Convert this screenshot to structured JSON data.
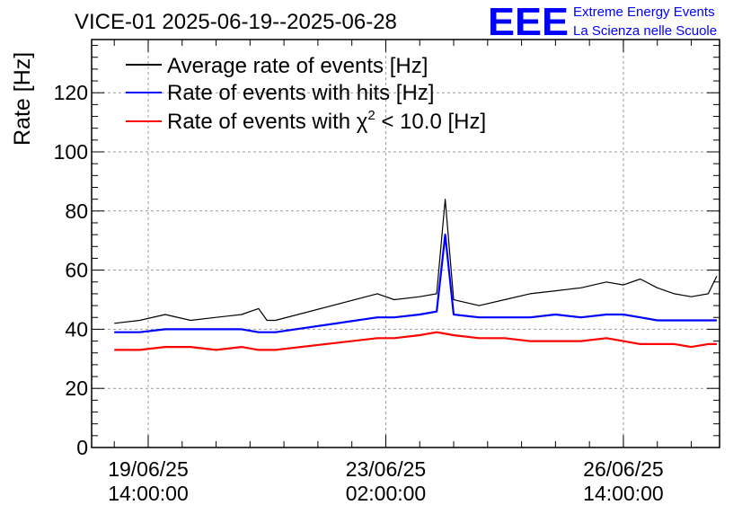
{
  "title": "VICE-01 2025-06-19--2025-06-28",
  "logo": {
    "letters": "EEE",
    "line1": "Extreme Energy Events",
    "line2": "La Scienza nelle Scuole",
    "color": "#0000ff"
  },
  "legend": {
    "items": [
      {
        "text": "Average rate of events [Hz]",
        "color": "#000000"
      },
      {
        "text": "Rate of events with hits [Hz]",
        "color": "#0000ff"
      },
      {
        "text_before": "Rate of events with ",
        "symbol": "χ",
        "superscript": "2",
        "text_after": " < 10.0 [Hz]",
        "color": "#ff0000"
      }
    ]
  },
  "chart_data": {
    "type": "line",
    "title": "VICE-01 2025-06-19--2025-06-28",
    "xlabel": "",
    "ylabel": "Rate [Hz]",
    "ylim": [
      0,
      138
    ],
    "xlim": [
      "2025-06-18 18:00",
      "2025-06-28 00:00"
    ],
    "yticks": [
      0,
      20,
      40,
      60,
      80,
      100,
      120
    ],
    "xticks": [
      {
        "date": "2025-06-19 14:00",
        "label_date": "19/06/25",
        "label_time": "14:00:00"
      },
      {
        "date": "2025-06-23 02:00",
        "label_date": "23/06/25",
        "label_time": "02:00:00"
      },
      {
        "date": "2025-06-26 14:00",
        "label_date": "26/06/25",
        "label_time": "14:00:00"
      }
    ],
    "grid": true,
    "legend_position": "top-left",
    "series": [
      {
        "name": "Average rate of events [Hz]",
        "color": "#000000",
        "points": [
          [
            "2025-06-19 02:00",
            42
          ],
          [
            "2025-06-19 11:00",
            43
          ],
          [
            "2025-06-19 20:00",
            45
          ],
          [
            "2025-06-20 05:00",
            43
          ],
          [
            "2025-06-20 14:00",
            44
          ],
          [
            "2025-06-20 23:00",
            45
          ],
          [
            "2025-06-21 05:00",
            47
          ],
          [
            "2025-06-21 08:00",
            43
          ],
          [
            "2025-06-21 11:00",
            43
          ],
          [
            "2025-06-22 23:00",
            52
          ],
          [
            "2025-06-23 05:00",
            50
          ],
          [
            "2025-06-23 14:00",
            51
          ],
          [
            "2025-06-23 20:00",
            52
          ],
          [
            "2025-06-23 23:00",
            84
          ],
          [
            "2025-06-24 02:00",
            50
          ],
          [
            "2025-06-24 11:00",
            48
          ],
          [
            "2025-06-24 20:00",
            50
          ],
          [
            "2025-06-25 05:00",
            52
          ],
          [
            "2025-06-25 14:00",
            53
          ],
          [
            "2025-06-25 23:00",
            54
          ],
          [
            "2025-06-26 08:00",
            56
          ],
          [
            "2025-06-26 14:00",
            55
          ],
          [
            "2025-06-26 20:00",
            57
          ],
          [
            "2025-06-27 02:00",
            54
          ],
          [
            "2025-06-27 08:00",
            52
          ],
          [
            "2025-06-27 14:00",
            51
          ],
          [
            "2025-06-27 20:00",
            52
          ],
          [
            "2025-06-27 23:00",
            58
          ]
        ]
      },
      {
        "name": "Rate of events with hits [Hz]",
        "color": "#0000ff",
        "points": [
          [
            "2025-06-19 02:00",
            39
          ],
          [
            "2025-06-19 11:00",
            39
          ],
          [
            "2025-06-19 20:00",
            40
          ],
          [
            "2025-06-20 05:00",
            40
          ],
          [
            "2025-06-20 14:00",
            40
          ],
          [
            "2025-06-20 23:00",
            40
          ],
          [
            "2025-06-21 05:00",
            39
          ],
          [
            "2025-06-21 11:00",
            39
          ],
          [
            "2025-06-22 23:00",
            44
          ],
          [
            "2025-06-23 05:00",
            44
          ],
          [
            "2025-06-23 14:00",
            45
          ],
          [
            "2025-06-23 20:00",
            46
          ],
          [
            "2025-06-23 23:00",
            72
          ],
          [
            "2025-06-24 02:00",
            45
          ],
          [
            "2025-06-24 11:00",
            44
          ],
          [
            "2025-06-24 20:00",
            44
          ],
          [
            "2025-06-25 05:00",
            44
          ],
          [
            "2025-06-25 14:00",
            45
          ],
          [
            "2025-06-25 23:00",
            44
          ],
          [
            "2025-06-26 08:00",
            45
          ],
          [
            "2025-06-26 14:00",
            45
          ],
          [
            "2025-06-26 20:00",
            44
          ],
          [
            "2025-06-27 02:00",
            43
          ],
          [
            "2025-06-27 08:00",
            43
          ],
          [
            "2025-06-27 14:00",
            43
          ],
          [
            "2025-06-27 20:00",
            43
          ],
          [
            "2025-06-27 23:00",
            43
          ]
        ]
      },
      {
        "name": "Rate of events with χ² < 10.0 [Hz]",
        "color": "#ff0000",
        "points": [
          [
            "2025-06-19 02:00",
            33
          ],
          [
            "2025-06-19 11:00",
            33
          ],
          [
            "2025-06-19 20:00",
            34
          ],
          [
            "2025-06-20 05:00",
            34
          ],
          [
            "2025-06-20 14:00",
            33
          ],
          [
            "2025-06-20 23:00",
            34
          ],
          [
            "2025-06-21 05:00",
            33
          ],
          [
            "2025-06-21 11:00",
            33
          ],
          [
            "2025-06-22 23:00",
            37
          ],
          [
            "2025-06-23 05:00",
            37
          ],
          [
            "2025-06-23 14:00",
            38
          ],
          [
            "2025-06-23 20:00",
            39
          ],
          [
            "2025-06-24 02:00",
            38
          ],
          [
            "2025-06-24 11:00",
            37
          ],
          [
            "2025-06-24 20:00",
            37
          ],
          [
            "2025-06-25 05:00",
            36
          ],
          [
            "2025-06-25 14:00",
            36
          ],
          [
            "2025-06-25 23:00",
            36
          ],
          [
            "2025-06-26 08:00",
            37
          ],
          [
            "2025-06-26 14:00",
            36
          ],
          [
            "2025-06-26 20:00",
            35
          ],
          [
            "2025-06-27 02:00",
            35
          ],
          [
            "2025-06-27 08:00",
            35
          ],
          [
            "2025-06-27 14:00",
            34
          ],
          [
            "2025-06-27 20:00",
            35
          ],
          [
            "2025-06-27 23:00",
            35
          ]
        ]
      }
    ]
  }
}
